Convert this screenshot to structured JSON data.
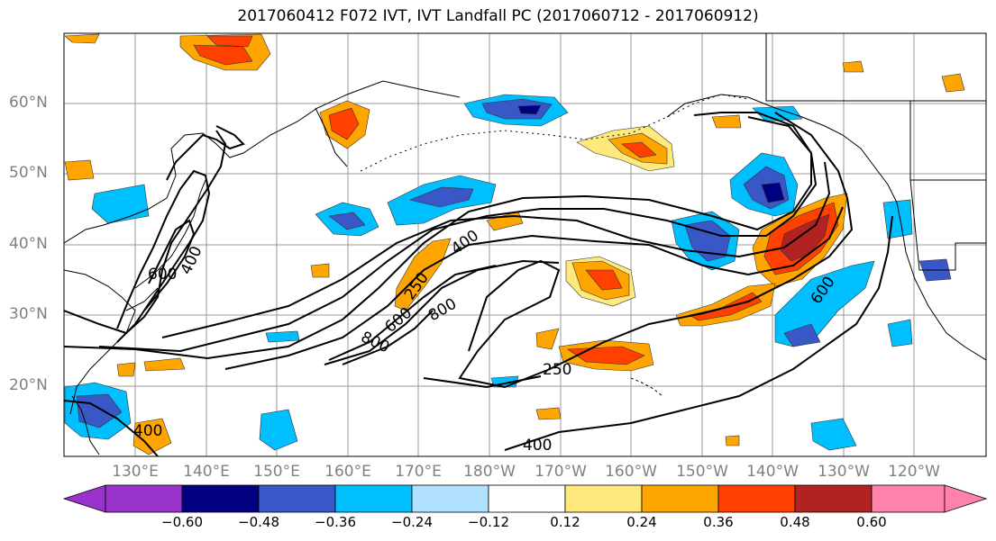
{
  "title": "2017060412 F072 IVT, IVT Landfall PC (2017060712 - 2017060912)",
  "lat_labels": [
    "60°N",
    "50°N",
    "40°N",
    "30°N",
    "20°N"
  ],
  "lon_labels": [
    "130°E",
    "140°E",
    "150°E",
    "160°E",
    "170°E",
    "180°W",
    "170°W",
    "160°W",
    "150°W",
    "140°W",
    "130°W",
    "120°W"
  ],
  "contour_labels": {
    "c600_west": "600",
    "c400_west": "400",
    "c400_mid": "400",
    "c250_mid": "250",
    "c600_mid": "600",
    "c800_a": "800",
    "c800_b": "800",
    "c250_south": "250",
    "c400_south": "400",
    "c600_east": "600",
    "c400_sw": "400"
  },
  "colorbar": {
    "tick_labels": [
      "−0.60",
      "−0.48",
      "−0.36",
      "−0.24",
      "−0.12",
      "0.12",
      "0.24",
      "0.36",
      "0.48",
      "0.60"
    ],
    "colors": [
      "#9a33cc",
      "#000080",
      "#3a57c8",
      "#00bfff",
      "#b0e2ff",
      "#ffffff",
      "#ffe87c",
      "#ffa500",
      "#ff4000",
      "#b22222",
      "#ff82ab"
    ]
  }
}
